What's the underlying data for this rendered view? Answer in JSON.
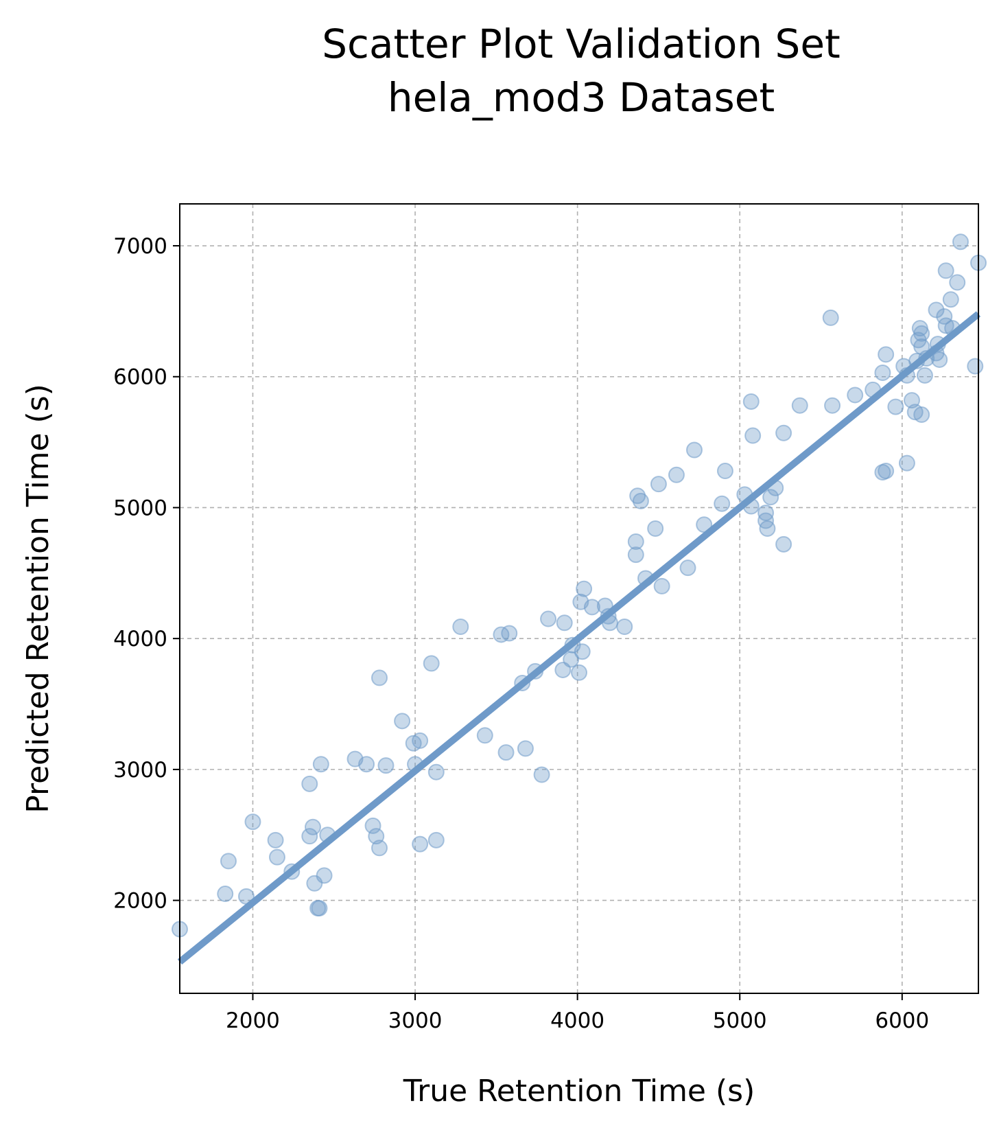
{
  "chart_data": {
    "type": "scatter",
    "title": [
      "Scatter Plot Validation Set",
      "hela_mod3 Dataset"
    ],
    "xlabel": "True Retention Time (s)",
    "ylabel": "Predicted Retention Time (s)",
    "xlim": [
      1550,
      6470
    ],
    "ylim": [
      1290,
      7320
    ],
    "xticks": [
      2000,
      3000,
      4000,
      5000,
      6000
    ],
    "yticks": [
      2000,
      3000,
      4000,
      5000,
      6000,
      7000
    ],
    "grid": true,
    "colors": {
      "points": "#6f9ac9",
      "fit_line": "#6f9ac9",
      "grid": "#b0b0b0"
    },
    "series": [
      {
        "points": [
          [
            1550,
            1780
          ],
          [
            1830,
            2050
          ],
          [
            1850,
            2300
          ],
          [
            1960,
            2030
          ],
          [
            2000,
            2600
          ],
          [
            2140,
            2460
          ],
          [
            2150,
            2330
          ],
          [
            2240,
            2220
          ],
          [
            2350,
            2890
          ],
          [
            2350,
            2490
          ],
          [
            2370,
            2560
          ],
          [
            2380,
            2130
          ],
          [
            2400,
            1940
          ],
          [
            2410,
            1940
          ],
          [
            2420,
            3040
          ],
          [
            2440,
            2190
          ],
          [
            2460,
            2500
          ],
          [
            2630,
            3080
          ],
          [
            2700,
            3040
          ],
          [
            2740,
            2570
          ],
          [
            2760,
            2490
          ],
          [
            2780,
            2400
          ],
          [
            2780,
            3700
          ],
          [
            2820,
            3030
          ],
          [
            2920,
            3370
          ],
          [
            2990,
            3200
          ],
          [
            3000,
            3040
          ],
          [
            3030,
            3220
          ],
          [
            3030,
            2430
          ],
          [
            3100,
            3810
          ],
          [
            3130,
            2980
          ],
          [
            3130,
            2460
          ],
          [
            3280,
            4090
          ],
          [
            3430,
            3260
          ],
          [
            3530,
            4030
          ],
          [
            3560,
            3130
          ],
          [
            3580,
            4040
          ],
          [
            3660,
            3660
          ],
          [
            3680,
            3160
          ],
          [
            3740,
            3750
          ],
          [
            3780,
            2960
          ],
          [
            3820,
            4150
          ],
          [
            3910,
            3760
          ],
          [
            3920,
            4120
          ],
          [
            3960,
            3840
          ],
          [
            3970,
            3950
          ],
          [
            4010,
            3740
          ],
          [
            4020,
            4280
          ],
          [
            4030,
            3900
          ],
          [
            4040,
            4380
          ],
          [
            4090,
            4240
          ],
          [
            4170,
            4250
          ],
          [
            4190,
            4170
          ],
          [
            4200,
            4120
          ],
          [
            4290,
            4090
          ],
          [
            4360,
            4740
          ],
          [
            4360,
            4640
          ],
          [
            4370,
            5090
          ],
          [
            4390,
            5050
          ],
          [
            4420,
            4460
          ],
          [
            4480,
            4840
          ],
          [
            4500,
            5180
          ],
          [
            4520,
            4400
          ],
          [
            4610,
            5250
          ],
          [
            4680,
            4540
          ],
          [
            4720,
            5440
          ],
          [
            4780,
            4870
          ],
          [
            4890,
            5030
          ],
          [
            4910,
            5280
          ],
          [
            5030,
            5100
          ],
          [
            5070,
            5010
          ],
          [
            5070,
            5810
          ],
          [
            5080,
            5550
          ],
          [
            5160,
            4960
          ],
          [
            5160,
            4900
          ],
          [
            5170,
            4840
          ],
          [
            5190,
            5080
          ],
          [
            5220,
            5150
          ],
          [
            5270,
            5570
          ],
          [
            5270,
            4720
          ],
          [
            5370,
            5780
          ],
          [
            5560,
            6450
          ],
          [
            5570,
            5780
          ],
          [
            5710,
            5860
          ],
          [
            5820,
            5900
          ],
          [
            5880,
            6030
          ],
          [
            5880,
            5270
          ],
          [
            5900,
            5280
          ],
          [
            5900,
            6170
          ],
          [
            5960,
            5770
          ],
          [
            6010,
            6080
          ],
          [
            6030,
            5340
          ],
          [
            6030,
            6010
          ],
          [
            6060,
            5820
          ],
          [
            6080,
            5730
          ],
          [
            6090,
            6120
          ],
          [
            6100,
            6280
          ],
          [
            6110,
            6370
          ],
          [
            6120,
            6330
          ],
          [
            6120,
            6230
          ],
          [
            6120,
            5710
          ],
          [
            6140,
            6010
          ],
          [
            6150,
            6140
          ],
          [
            6210,
            6180
          ],
          [
            6210,
            6510
          ],
          [
            6220,
            6250
          ],
          [
            6230,
            6130
          ],
          [
            6260,
            6460
          ],
          [
            6270,
            6810
          ],
          [
            6270,
            6390
          ],
          [
            6300,
            6590
          ],
          [
            6310,
            6370
          ],
          [
            6340,
            6720
          ],
          [
            6360,
            7030
          ],
          [
            6450,
            6080
          ],
          [
            6470,
            6870
          ]
        ]
      }
    ],
    "fit_line": {
      "x": [
        1550,
        6470
      ],
      "y": [
        1530,
        6480
      ]
    }
  }
}
